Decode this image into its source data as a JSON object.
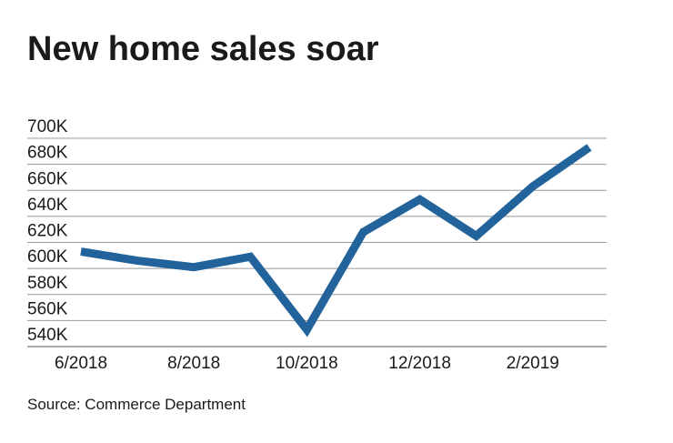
{
  "chart_data": {
    "type": "line",
    "title": "New home sales soar",
    "source": "Source: Commerce Department",
    "categories": [
      "6/2018",
      null,
      "8/2018",
      null,
      "10/2018",
      null,
      "12/2018",
      null,
      "2/2019",
      null
    ],
    "series": [
      {
        "color": "#21639a",
        "values": [
          613000,
          606000,
          601000,
          609000,
          553000,
          628000,
          653000,
          625000,
          663000,
          693000
        ]
      }
    ],
    "ylim": [
      540000,
      700000
    ],
    "yticks": [
      {
        "value": 540000,
        "label": "540K"
      },
      {
        "value": 560000,
        "label": "560K"
      },
      {
        "value": 580000,
        "label": "580K"
      },
      {
        "value": 600000,
        "label": "600K"
      },
      {
        "value": 620000,
        "label": "620K"
      },
      {
        "value": 640000,
        "label": "640K"
      },
      {
        "value": 660000,
        "label": "660K"
      },
      {
        "value": 680000,
        "label": "680K"
      },
      {
        "value": 700000,
        "label": "700K"
      }
    ],
    "grid": true
  }
}
